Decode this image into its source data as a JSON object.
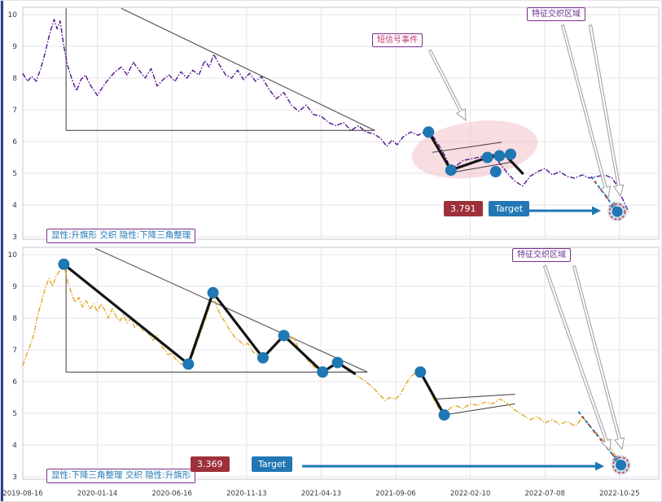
{
  "colors": {
    "top_series": "#53128f",
    "bottom_series": "#e3a71f",
    "pivot": "#1f77b4",
    "trend": "#4d4d4d",
    "thick": "#141414",
    "grid": "#e4e4ec",
    "dashed": "#1f77b4",
    "dashed_mix": "#c23b3b",
    "target_ring": "#c0392b",
    "target_value_bg": "#9e3039",
    "target_label_bg": "#2277b4",
    "annotation_border": "#7b2f8e",
    "ellipse_fill": "#efb3bd"
  },
  "x_axis": {
    "tick_labels": [
      "2019-08-16",
      "2020-01-14",
      "2020-06-16",
      "2020-11-13",
      "2021-04-13",
      "2021-09-06",
      "2022-02-10",
      "2022-07-08",
      "2022-10-25"
    ]
  },
  "y_axis": {
    "tick_labels": [
      "3",
      "4",
      "5",
      "6",
      "7",
      "8",
      "9",
      "10"
    ]
  },
  "chart_data": [
    {
      "id": "top",
      "type": "line",
      "ylim": [
        3,
        10
      ],
      "color": "#53128f",
      "labels": {
        "region": "特征交织区域",
        "signal": "短信号事件",
        "pattern": "显性:升旗形 交织 隐性:下降三角整理",
        "target_value": "3.791",
        "target_label": "Target"
      },
      "series": [
        [
          0,
          8.15
        ],
        [
          0.06,
          7.9
        ],
        [
          0.12,
          8.05
        ],
        [
          0.18,
          7.9
        ],
        [
          0.24,
          8.3
        ],
        [
          0.3,
          8.8
        ],
        [
          0.36,
          9.4
        ],
        [
          0.42,
          9.85
        ],
        [
          0.46,
          9.55
        ],
        [
          0.5,
          9.8
        ],
        [
          0.55,
          9.0
        ],
        [
          0.6,
          8.4
        ],
        [
          0.66,
          7.95
        ],
        [
          0.72,
          7.6
        ],
        [
          0.78,
          7.95
        ],
        [
          0.84,
          8.1
        ],
        [
          0.9,
          7.8
        ],
        [
          1,
          7.45
        ],
        [
          1.08,
          7.75
        ],
        [
          1.16,
          8.0
        ],
        [
          1.24,
          8.2
        ],
        [
          1.32,
          8.35
        ],
        [
          1.4,
          8.1
        ],
        [
          1.48,
          8.5
        ],
        [
          1.56,
          8.25
        ],
        [
          1.64,
          8.0
        ],
        [
          1.72,
          8.3
        ],
        [
          1.8,
          7.75
        ],
        [
          1.88,
          7.95
        ],
        [
          1.96,
          8.1
        ],
        [
          2.04,
          7.9
        ],
        [
          2.12,
          8.2
        ],
        [
          2.2,
          8.0
        ],
        [
          2.28,
          8.25
        ],
        [
          2.36,
          8.1
        ],
        [
          2.44,
          8.55
        ],
        [
          2.5,
          8.35
        ],
        [
          2.56,
          8.75
        ],
        [
          2.64,
          8.4
        ],
        [
          2.72,
          8.1
        ],
        [
          2.8,
          8.0
        ],
        [
          2.88,
          8.25
        ],
        [
          2.96,
          7.95
        ],
        [
          3.04,
          8.15
        ],
        [
          3.12,
          7.9
        ],
        [
          3.2,
          8.05
        ],
        [
          3.3,
          7.65
        ],
        [
          3.4,
          7.35
        ],
        [
          3.5,
          7.55
        ],
        [
          3.6,
          7.15
        ],
        [
          3.7,
          6.95
        ],
        [
          3.8,
          7.15
        ],
        [
          3.9,
          6.85
        ],
        [
          4,
          6.8
        ],
        [
          4.1,
          6.6
        ],
        [
          4.2,
          6.5
        ],
        [
          4.3,
          6.6
        ],
        [
          4.4,
          6.35
        ],
        [
          4.5,
          6.5
        ],
        [
          4.6,
          6.3
        ],
        [
          4.7,
          6.25
        ],
        [
          4.8,
          6.1
        ],
        [
          4.88,
          5.85
        ],
        [
          4.95,
          6.05
        ],
        [
          5.02,
          5.9
        ],
        [
          5.1,
          6.15
        ],
        [
          5.2,
          6.3
        ],
        [
          5.3,
          6.2
        ],
        [
          5.38,
          6.3
        ],
        [
          5.44,
          6.3
        ],
        [
          5.52,
          6.1
        ],
        [
          5.6,
          5.8
        ],
        [
          5.68,
          5.45
        ],
        [
          5.74,
          5.1
        ],
        [
          5.82,
          5.25
        ],
        [
          5.9,
          5.4
        ],
        [
          6,
          5.45
        ],
        [
          6.1,
          5.5
        ],
        [
          6.2,
          5.55
        ],
        [
          6.3,
          5.6
        ],
        [
          6.4,
          5.3
        ],
        [
          6.5,
          5.0
        ],
        [
          6.6,
          4.75
        ],
        [
          6.7,
          4.6
        ],
        [
          6.8,
          4.9
        ],
        [
          6.9,
          5.05
        ],
        [
          7,
          5.15
        ],
        [
          7.1,
          4.95
        ],
        [
          7.2,
          5.05
        ],
        [
          7.3,
          4.9
        ],
        [
          7.4,
          4.85
        ],
        [
          7.5,
          4.95
        ],
        [
          7.6,
          4.85
        ],
        [
          7.7,
          4.9
        ],
        [
          7.8,
          4.95
        ],
        [
          7.9,
          4.85
        ],
        [
          7.97,
          4.6
        ],
        [
          8.02,
          4.3
        ],
        [
          8.08,
          4.0
        ],
        [
          8.12,
          3.79
        ]
      ],
      "pivots": [
        [
          5.44,
          6.3
        ],
        [
          5.74,
          5.1
        ],
        [
          6.23,
          5.5
        ],
        [
          6.39,
          5.55
        ],
        [
          6.54,
          5.6
        ],
        [
          6.34,
          5.05
        ]
      ],
      "trend_lines": [
        [
          [
            0.58,
            10.2
          ],
          [
            0.58,
            6.35
          ]
        ],
        [
          [
            0.58,
            6.35
          ],
          [
            4.72,
            6.35
          ]
        ],
        [
          [
            1.32,
            10.2
          ],
          [
            4.72,
            6.35
          ]
        ],
        [
          [
            5.74,
            5.02
          ],
          [
            6.55,
            5.35
          ]
        ],
        [
          [
            5.49,
            5.66
          ],
          [
            6.42,
            5.98
          ]
        ]
      ],
      "thick_lines": [
        [
          [
            5.44,
            6.3
          ],
          [
            5.74,
            5.1
          ]
        ],
        [
          [
            5.74,
            5.1
          ],
          [
            6.23,
            5.5
          ]
        ],
        [
          [
            6.23,
            5.5
          ],
          [
            6.47,
            5.57
          ]
        ],
        [
          [
            6.47,
            5.57
          ],
          [
            6.7,
            5.0
          ]
        ]
      ],
      "dashed_line": [
        [
          7.62,
          4.9
        ],
        [
          7.97,
          3.79
        ]
      ],
      "target": {
        "t": 7.97,
        "v": 3.791
      },
      "ellipse": {
        "t": 6.06,
        "v": 5.75,
        "rt": 0.85,
        "rv": 0.88,
        "rot": -8
      }
    },
    {
      "id": "bottom",
      "type": "line",
      "ylim": [
        3,
        10
      ],
      "color": "#e3a71f",
      "labels": {
        "region": "特征交织区域",
        "pattern": "显性:下降三角整理 交织 隐性:升旗形",
        "target_value": "3.369",
        "target_label": "Target"
      },
      "series": [
        [
          0,
          6.5
        ],
        [
          0.05,
          6.85
        ],
        [
          0.1,
          7.15
        ],
        [
          0.15,
          7.5
        ],
        [
          0.2,
          8.1
        ],
        [
          0.25,
          8.5
        ],
        [
          0.3,
          8.95
        ],
        [
          0.35,
          9.25
        ],
        [
          0.4,
          9.0
        ],
        [
          0.45,
          9.35
        ],
        [
          0.5,
          9.5
        ],
        [
          0.55,
          9.7
        ],
        [
          0.6,
          9.15
        ],
        [
          0.65,
          8.8
        ],
        [
          0.7,
          8.5
        ],
        [
          0.75,
          8.65
        ],
        [
          0.8,
          8.35
        ],
        [
          0.85,
          8.55
        ],
        [
          0.9,
          8.3
        ],
        [
          0.95,
          8.45
        ],
        [
          1,
          8.2
        ],
        [
          1.05,
          8.45
        ],
        [
          1.1,
          8.25
        ],
        [
          1.15,
          8.0
        ],
        [
          1.2,
          8.3
        ],
        [
          1.25,
          8.05
        ],
        [
          1.3,
          7.9
        ],
        [
          1.35,
          8.1
        ],
        [
          1.4,
          7.85
        ],
        [
          1.45,
          8.0
        ],
        [
          1.5,
          7.7
        ],
        [
          1.55,
          7.85
        ],
        [
          1.6,
          7.6
        ],
        [
          1.65,
          7.7
        ],
        [
          1.7,
          7.45
        ],
        [
          1.75,
          7.3
        ],
        [
          1.8,
          7.45
        ],
        [
          1.85,
          7.15
        ],
        [
          1.9,
          7.0
        ],
        [
          1.95,
          6.85
        ],
        [
          2,
          6.9
        ],
        [
          2.05,
          6.7
        ],
        [
          2.1,
          6.6
        ],
        [
          2.16,
          6.5
        ],
        [
          2.22,
          6.55
        ],
        [
          2.28,
          6.85
        ],
        [
          2.34,
          7.25
        ],
        [
          2.4,
          7.65
        ],
        [
          2.46,
          8.05
        ],
        [
          2.5,
          8.35
        ],
        [
          2.55,
          8.8
        ],
        [
          2.6,
          8.35
        ],
        [
          2.66,
          8.05
        ],
        [
          2.72,
          7.85
        ],
        [
          2.78,
          7.6
        ],
        [
          2.84,
          7.4
        ],
        [
          2.9,
          7.3
        ],
        [
          2.96,
          7.15
        ],
        [
          3.02,
          7.2
        ],
        [
          3.08,
          6.95
        ],
        [
          3.14,
          6.85
        ],
        [
          3.22,
          6.75
        ],
        [
          3.3,
          6.95
        ],
        [
          3.4,
          7.2
        ],
        [
          3.5,
          7.45
        ],
        [
          3.56,
          7.25
        ],
        [
          3.62,
          7.4
        ],
        [
          3.7,
          7.05
        ],
        [
          3.78,
          6.8
        ],
        [
          3.86,
          6.55
        ],
        [
          3.94,
          6.4
        ],
        [
          4.02,
          6.3
        ],
        [
          4.1,
          6.4
        ],
        [
          4.16,
          6.5
        ],
        [
          4.22,
          6.6
        ],
        [
          4.3,
          6.45
        ],
        [
          4.4,
          6.3
        ],
        [
          4.5,
          6.15
        ],
        [
          4.6,
          6.0
        ],
        [
          4.7,
          5.8
        ],
        [
          4.8,
          5.55
        ],
        [
          4.86,
          5.4
        ],
        [
          4.92,
          5.5
        ],
        [
          5,
          5.45
        ],
        [
          5.06,
          5.6
        ],
        [
          5.12,
          5.85
        ],
        [
          5.18,
          6.1
        ],
        [
          5.25,
          6.25
        ],
        [
          5.33,
          6.3
        ],
        [
          5.4,
          6.0
        ],
        [
          5.46,
          5.7
        ],
        [
          5.52,
          5.4
        ],
        [
          5.58,
          5.15
        ],
        [
          5.65,
          4.95
        ],
        [
          5.72,
          5.15
        ],
        [
          5.8,
          5.25
        ],
        [
          5.9,
          5.15
        ],
        [
          6,
          5.3
        ],
        [
          6.1,
          5.25
        ],
        [
          6.2,
          5.35
        ],
        [
          6.3,
          5.3
        ],
        [
          6.4,
          5.45
        ],
        [
          6.5,
          5.3
        ],
        [
          6.6,
          5.1
        ],
        [
          6.7,
          4.95
        ],
        [
          6.8,
          4.8
        ],
        [
          6.9,
          4.9
        ],
        [
          7,
          4.7
        ],
        [
          7.1,
          4.8
        ],
        [
          7.2,
          4.65
        ],
        [
          7.3,
          4.75
        ],
        [
          7.4,
          4.6
        ],
        [
          7.45,
          4.7
        ],
        [
          7.5,
          4.9
        ],
        [
          7.55,
          4.75
        ],
        [
          7.62,
          4.55
        ],
        [
          7.7,
          4.35
        ],
        [
          7.8,
          4.1
        ],
        [
          7.9,
          3.85
        ],
        [
          7.96,
          3.6
        ],
        [
          8.02,
          3.37
        ]
      ],
      "pivots": [
        [
          0.55,
          9.7
        ],
        [
          2.22,
          6.55
        ],
        [
          2.55,
          8.8
        ],
        [
          3.22,
          6.75
        ],
        [
          3.5,
          7.45
        ],
        [
          4.02,
          6.3
        ],
        [
          4.22,
          6.6
        ],
        [
          5.33,
          6.3
        ],
        [
          5.65,
          4.95
        ]
      ],
      "trend_lines": [
        [
          [
            0.58,
            9.75
          ],
          [
            0.58,
            6.3
          ]
        ],
        [
          [
            0.58,
            6.3
          ],
          [
            4.62,
            6.3
          ]
        ],
        [
          [
            0.97,
            10.2
          ],
          [
            4.62,
            6.3
          ]
        ],
        [
          [
            5.55,
            5.45
          ],
          [
            6.6,
            5.6
          ]
        ],
        [
          [
            5.65,
            4.95
          ],
          [
            6.6,
            5.3
          ]
        ]
      ],
      "thick_lines": [
        [
          [
            0.55,
            9.7
          ],
          [
            2.22,
            6.55
          ]
        ],
        [
          [
            2.22,
            6.55
          ],
          [
            2.55,
            8.8
          ]
        ],
        [
          [
            2.55,
            8.8
          ],
          [
            3.22,
            6.75
          ]
        ],
        [
          [
            3.22,
            6.75
          ],
          [
            3.5,
            7.45
          ]
        ],
        [
          [
            3.5,
            7.45
          ],
          [
            4.02,
            6.3
          ]
        ],
        [
          [
            4.02,
            6.3
          ],
          [
            4.22,
            6.6
          ]
        ],
        [
          [
            4.22,
            6.6
          ],
          [
            4.45,
            6.25
          ]
        ],
        [
          [
            5.33,
            6.3
          ],
          [
            5.65,
            4.95
          ]
        ]
      ],
      "dashed_line": [
        [
          7.45,
          5.05
        ],
        [
          8.02,
          3.37
        ]
      ],
      "target": {
        "t": 8.02,
        "v": 3.369
      },
      "ellipse": null
    }
  ]
}
